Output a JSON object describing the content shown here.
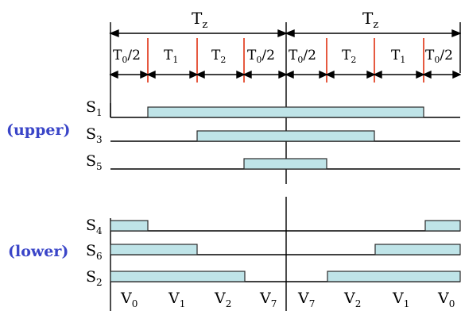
{
  "colors": {
    "bar_fill": "#bfe4e8",
    "bar_stroke": "#2a2a2a",
    "line": "#000000",
    "red_marker": "#e03010",
    "group_label": "#3a45c8"
  },
  "header": {
    "period_left": "T",
    "period_left_sub": "z",
    "period_right": "T",
    "period_right_sub": "z"
  },
  "segments": [
    {
      "main": "T",
      "sub": "0",
      "tail": "/2"
    },
    {
      "main": "T",
      "sub": "1",
      "tail": ""
    },
    {
      "main": "T",
      "sub": "2",
      "tail": ""
    },
    {
      "main": "T",
      "sub": "0",
      "tail": "/2"
    },
    {
      "main": "T",
      "sub": "0",
      "tail": "/2"
    },
    {
      "main": "T",
      "sub": "2",
      "tail": ""
    },
    {
      "main": "T",
      "sub": "1",
      "tail": ""
    },
    {
      "main": "T",
      "sub": "0",
      "tail": "/2"
    }
  ],
  "groups": {
    "upper": "(upper)",
    "lower": "(lower)"
  },
  "switches": {
    "upper": [
      {
        "main": "S",
        "sub": "1"
      },
      {
        "main": "S",
        "sub": "3"
      },
      {
        "main": "S",
        "sub": "5"
      }
    ],
    "lower": [
      {
        "main": "S",
        "sub": "4"
      },
      {
        "main": "S",
        "sub": "6"
      },
      {
        "main": "S",
        "sub": "2"
      }
    ]
  },
  "vectors": [
    {
      "main": "V",
      "sub": "0"
    },
    {
      "main": "V",
      "sub": "1"
    },
    {
      "main": "V",
      "sub": "2"
    },
    {
      "main": "V",
      "sub": "7"
    },
    {
      "main": "V",
      "sub": "7"
    },
    {
      "main": "V",
      "sub": "2"
    },
    {
      "main": "V",
      "sub": "1"
    },
    {
      "main": "V",
      "sub": "0"
    }
  ]
}
